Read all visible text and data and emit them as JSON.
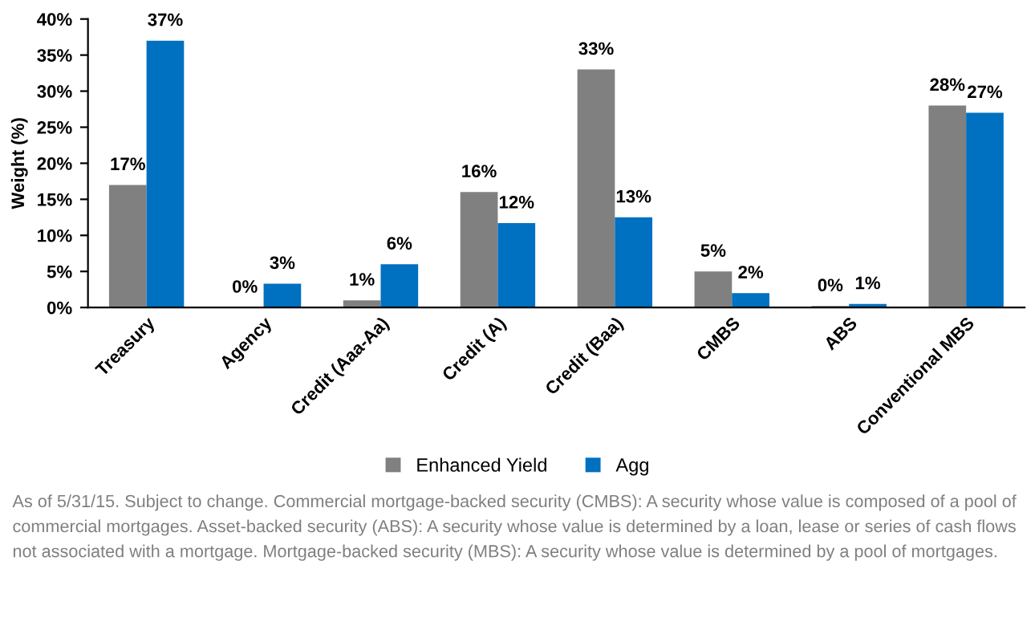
{
  "chart_data": {
    "type": "bar",
    "ylabel": "Weight (%)",
    "categories": [
      "Treasury",
      "Agency",
      "Credit (Aaa-Aa)",
      "Credit (A)",
      "Credit (Baa)",
      "CMBS",
      "ABS",
      "Conventional MBS"
    ],
    "series": [
      {
        "name": "Enhanced Yield",
        "color": "#808080",
        "values": [
          17,
          0,
          1,
          16,
          33,
          5,
          0.2,
          28
        ],
        "value_labels": [
          "17%",
          "0%",
          "1%",
          "16%",
          "33%",
          "5%",
          "0%",
          "28%"
        ]
      },
      {
        "name": "Agg",
        "color": "#0070c0",
        "values": [
          37,
          3.3,
          6,
          11.7,
          12.5,
          2,
          0.5,
          27
        ],
        "value_labels": [
          "37%",
          "3%",
          "6%",
          "12%",
          "13%",
          "2%",
          "1%",
          "27%"
        ]
      }
    ],
    "ylim": [
      0,
      40
    ],
    "yticks": [
      {
        "value": 0,
        "label": "0%"
      },
      {
        "value": 5,
        "label": "5%"
      },
      {
        "value": 10,
        "label": "10%"
      },
      {
        "value": 15,
        "label": "15%"
      },
      {
        "value": 20,
        "label": "20%"
      },
      {
        "value": 25,
        "label": "25%"
      },
      {
        "value": 30,
        "label": "30%"
      },
      {
        "value": 35,
        "label": "35%"
      },
      {
        "value": 40,
        "label": "40%"
      }
    ],
    "grid": false,
    "legend": "bottom",
    "annotations": [
      "As of 5/31/15. Subject to change. Commercial mortgage-backed security (CMBS): A security whose value is composed of a pool of commercial mortgages. Asset-backed security (ABS): A security whose value is determined by a loan, lease or series of cash flows not associated with a mortgage. Mortgage-backed security (MBS): A security whose value is determined by a pool of mortgages."
    ]
  }
}
